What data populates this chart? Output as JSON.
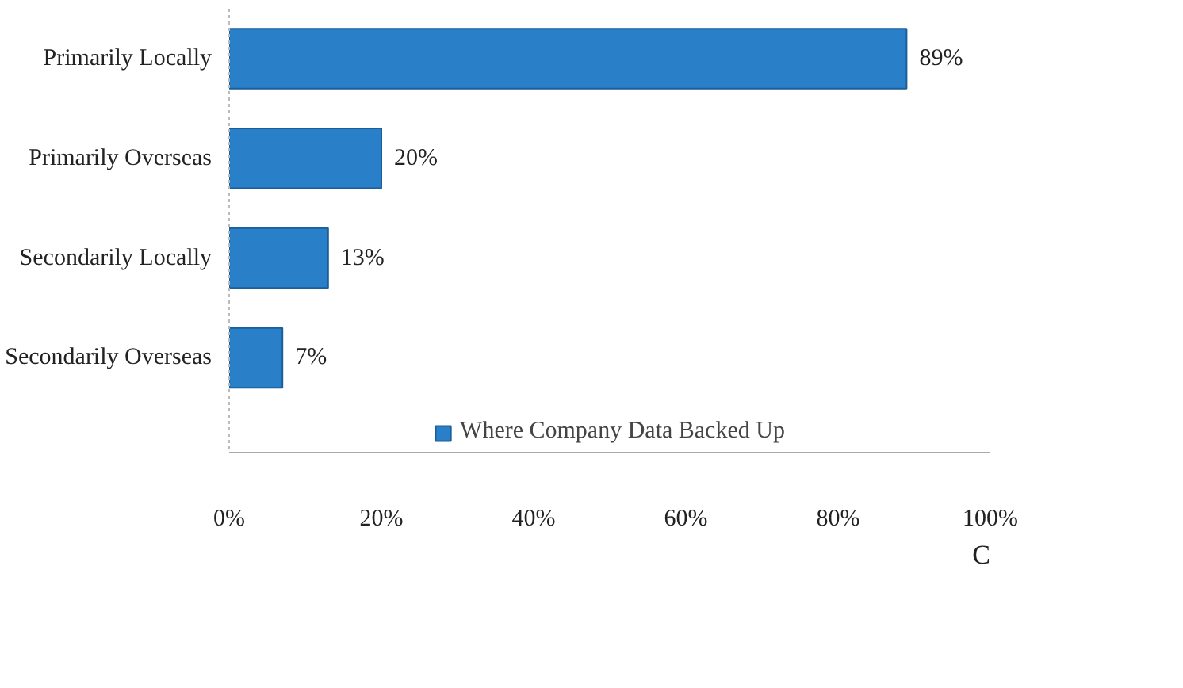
{
  "chart_data": {
    "type": "bar",
    "orientation": "horizontal",
    "categories": [
      "Primarily Locally",
      "Primarily Overseas",
      "Secondarily Locally",
      "Secondarily Overseas"
    ],
    "series": [
      {
        "name": "Where Company Data Backed Up",
        "color": "#2a7fc9",
        "values": [
          89,
          20,
          13,
          7
        ],
        "value_labels": [
          "89%",
          "20%",
          "13%",
          "7%"
        ]
      }
    ],
    "xlim": [
      0,
      100
    ],
    "xticks": [
      {
        "value": 0,
        "label": "0%"
      },
      {
        "value": 20,
        "label": "20%"
      },
      {
        "value": 40,
        "label": "40%"
      },
      {
        "value": 60,
        "label": "60%"
      },
      {
        "value": 80,
        "label": "80%"
      },
      {
        "value": 100,
        "label": "100%"
      }
    ],
    "grid": false,
    "legend": "bottom",
    "annotations": [
      "C"
    ]
  }
}
